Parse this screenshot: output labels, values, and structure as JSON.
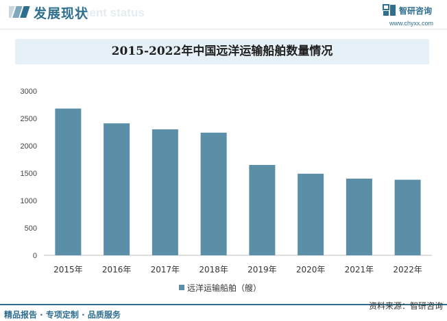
{
  "header": {
    "section_title": "发展现状",
    "section_subtitle_ghost": "nent status",
    "brand_name": "智研咨询",
    "brand_url": "www.chyxx.com"
  },
  "colors": {
    "bar": "#5b8fa8",
    "accent": "#2e6e8e",
    "title_band": "#e6f1f7"
  },
  "chart_data": {
    "type": "bar",
    "title": "2015-2022年中国远洋运输船舶数量情况",
    "categories": [
      "2015年",
      "2016年",
      "2017年",
      "2018年",
      "2019年",
      "2020年",
      "2021年",
      "2022年"
    ],
    "series": [
      {
        "name": "远洋运输船舶（艘）",
        "values": [
          2680,
          2410,
          2300,
          2240,
          1650,
          1490,
          1400,
          1380
        ]
      }
    ],
    "ylim": [
      0,
      3000
    ],
    "yticks": [
      0,
      500,
      1000,
      1500,
      2000,
      2500,
      3000
    ],
    "grid": false,
    "legend": "bottom"
  },
  "footer": {
    "left_text": "精品报告 · 专项定制 · 品质服务",
    "source_text": "资料来源：智研咨询"
  }
}
